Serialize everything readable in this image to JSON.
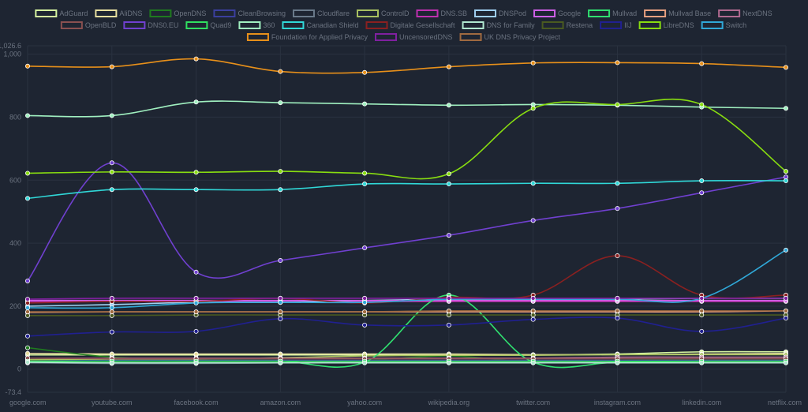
{
  "chart_data": {
    "type": "line",
    "title": "",
    "xlabel": "",
    "ylabel": "",
    "categories": [
      "google.com",
      "youtube.com",
      "facebook.com",
      "amazon.com",
      "yahoo.com",
      "wikipedia.org",
      "twitter.com",
      "instagram.com",
      "linkedin.com",
      "netflix.com"
    ],
    "ylim": [
      -73.4,
      1026.6
    ],
    "yticks": [
      {
        "value": 1026.6,
        "label": "1,026.6"
      },
      {
        "value": 1000,
        "label": "1,000"
      },
      {
        "value": 800,
        "label": "800"
      },
      {
        "value": 600,
        "label": "600"
      },
      {
        "value": 400,
        "label": "400"
      },
      {
        "value": 200,
        "label": "200"
      },
      {
        "value": 0,
        "label": "0"
      },
      {
        "value": -73.4,
        "label": "-73.4"
      }
    ],
    "grid": true,
    "legend_position": "top",
    "series": [
      {
        "name": "AdGuard",
        "color": "#d6f5a0",
        "values": [
          45,
          45,
          45,
          45,
          45,
          45,
          45,
          48,
          55,
          55
        ]
      },
      {
        "name": "AliDNS",
        "color": "#e8e0a0",
        "values": [
          50,
          48,
          48,
          48,
          48,
          48,
          46,
          46,
          48,
          50
        ]
      },
      {
        "name": "OpenDNS",
        "color": "#1f7a1f",
        "values": [
          68,
          38,
          32,
          28,
          28,
          42,
          22,
          28,
          32,
          32
        ]
      },
      {
        "name": "CleanBrowsing",
        "color": "#3b3f9e",
        "values": [
          30,
          28,
          28,
          28,
          28,
          28,
          28,
          28,
          28,
          28
        ]
      },
      {
        "name": "Cloudflare",
        "color": "#6a7a8a",
        "values": [
          20,
          18,
          18,
          20,
          22,
          22,
          22,
          22,
          22,
          22
        ]
      },
      {
        "name": "ControlD",
        "color": "#a8c060",
        "values": [
          30,
          32,
          32,
          36,
          42,
          44,
          44,
          46,
          46,
          46
        ]
      },
      {
        "name": "DNS.SB",
        "color": "#c030b0",
        "values": [
          215,
          215,
          215,
          215,
          215,
          215,
          215,
          215,
          215,
          215
        ]
      },
      {
        "name": "DNSPod",
        "color": "#a0d0f0",
        "values": [
          200,
          205,
          212,
          212,
          218,
          222,
          222,
          222,
          225,
          225
        ]
      },
      {
        "name": "Google",
        "color": "#d060e8",
        "values": [
          218,
          218,
          218,
          218,
          218,
          218,
          218,
          218,
          218,
          218
        ]
      },
      {
        "name": "Mullvad",
        "color": "#30e070",
        "values": [
          25,
          25,
          25,
          25,
          22,
          235,
          22,
          22,
          25,
          25
        ]
      },
      {
        "name": "Mullvad Base",
        "color": "#e8a080",
        "values": [
          180,
          182,
          182,
          182,
          182,
          182,
          182,
          182,
          182,
          185
        ]
      },
      {
        "name": "NextDNS",
        "color": "#b06a90",
        "values": [
          35,
          35,
          35,
          35,
          35,
          35,
          35,
          38,
          38,
          38
        ]
      },
      {
        "name": "OpenBLD",
        "color": "#8a5050",
        "values": [
          35,
          33,
          33,
          33,
          33,
          33,
          33,
          33,
          33,
          33
        ]
      },
      {
        "name": "DNS0.EU",
        "color": "#7040d0",
        "values": [
          280,
          655,
          308,
          345,
          385,
          425,
          472,
          510,
          560,
          610
        ]
      },
      {
        "name": "Quad9",
        "color": "#30e060",
        "values": [
          25,
          25,
          25,
          25,
          25,
          25,
          25,
          25,
          25,
          25
        ]
      },
      {
        "name": "360",
        "color": "#a0f0c0",
        "values": [
          805,
          805,
          848,
          846,
          842,
          838,
          840,
          838,
          832,
          828
        ]
      },
      {
        "name": "Canadian Shield",
        "color": "#30d8d8",
        "values": [
          542,
          570,
          570,
          570,
          588,
          588,
          590,
          590,
          598,
          598
        ]
      },
      {
        "name": "Digitale Gesellschaft",
        "color": "#8a2020",
        "values": [
          210,
          215,
          215,
          225,
          210,
          228,
          235,
          360,
          235,
          235
        ]
      },
      {
        "name": "DNS for Family",
        "color": "#b0e8d0",
        "values": [
          22,
          20,
          20,
          20,
          20,
          20,
          20,
          20,
          20,
          20
        ]
      },
      {
        "name": "Restena",
        "color": "#4a5a20",
        "values": [
          170,
          170,
          172,
          172,
          172,
          172,
          172,
          172,
          172,
          172
        ]
      },
      {
        "name": "IIJ",
        "color": "#202090",
        "values": [
          105,
          118,
          120,
          160,
          140,
          140,
          158,
          162,
          120,
          162
        ]
      },
      {
        "name": "LibreDNS",
        "color": "#88dd10",
        "values": [
          622,
          626,
          625,
          628,
          622,
          620,
          828,
          840,
          840,
          628
        ]
      },
      {
        "name": "Switch",
        "color": "#30a8d8",
        "values": [
          195,
          195,
          210,
          212,
          212,
          222,
          222,
          222,
          225,
          378
        ]
      },
      {
        "name": "Foundation for Applied Privacy",
        "color": "#e8901a",
        "values": [
          962,
          960,
          985,
          945,
          942,
          960,
          972,
          973,
          970,
          958
        ]
      },
      {
        "name": "UncensoredDNS",
        "color": "#8020a0",
        "values": [
          222,
          225,
          225,
          225,
          225,
          225,
          225,
          225,
          225,
          225
        ]
      },
      {
        "name": "UK DNS Privacy Project",
        "color": "#a06a40",
        "values": [
          182,
          182,
          182,
          182,
          182,
          185,
          185,
          185,
          185,
          185
        ]
      }
    ]
  }
}
